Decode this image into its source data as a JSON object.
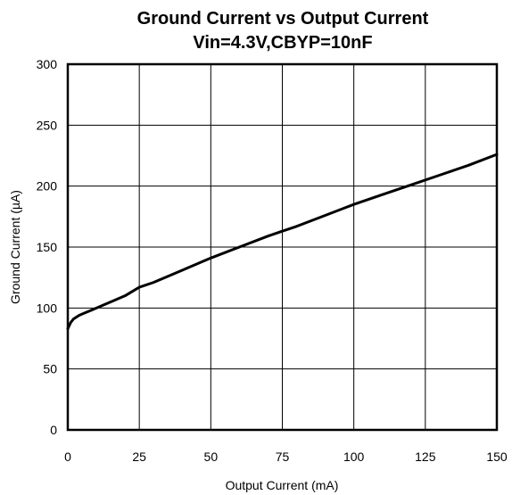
{
  "chart_data": {
    "type": "line",
    "title": "Ground Current vs Output Current",
    "subtitle": "Vin=4.3V,CBYP=10nF",
    "xlabel": "Output Current (mA)",
    "ylabel": "Ground Current (µA)",
    "xlim": [
      0,
      150
    ],
    "ylim": [
      0,
      300
    ],
    "x_ticks": [
      0,
      25,
      50,
      75,
      100,
      125,
      150
    ],
    "y_ticks": [
      0,
      50,
      100,
      150,
      200,
      250,
      300
    ],
    "grid": true,
    "line_color": "#000000",
    "series": [
      {
        "x": [
          0,
          1,
          2,
          4,
          6,
          8,
          10,
          15,
          20,
          25,
          30,
          40,
          50,
          60,
          70,
          75,
          80,
          90,
          100,
          110,
          120,
          130,
          140,
          150
        ],
        "y": [
          83,
          88,
          91,
          94,
          96,
          98,
          100,
          105,
          110,
          117,
          121,
          131,
          141,
          150,
          159,
          163,
          167,
          176,
          185,
          193,
          201,
          209,
          217,
          226
        ]
      }
    ]
  }
}
